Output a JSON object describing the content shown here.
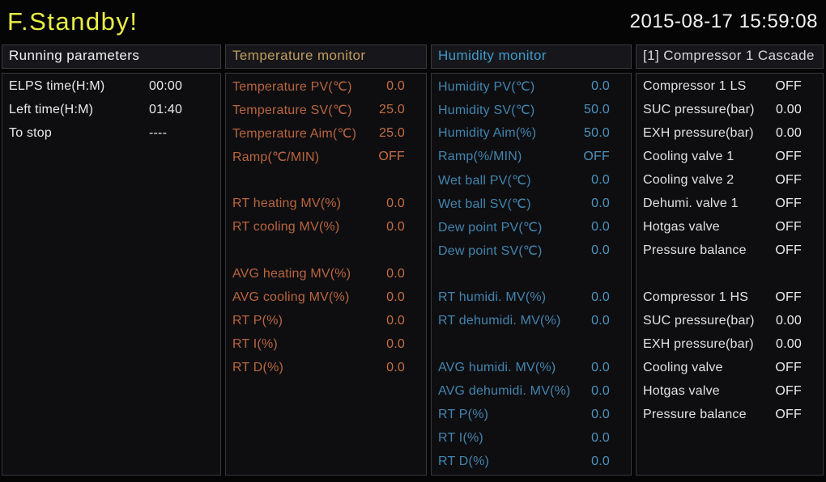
{
  "titlebar": {
    "title": "F.Standby!",
    "datetime": "2015-08-17 15:59:08"
  },
  "colors": {
    "background": "#050505",
    "title": "#e9ee44",
    "datetime": "#f2f2f2",
    "panel_header_bg": "#17171b",
    "panel_body_bg": "#0e0e11",
    "panel_border": "#3a3a3e",
    "temperature_accent": "#c09c5c",
    "temperature_text": "#bd6840",
    "humidity_accent": "#3e9bcb",
    "humidity_text": "#4687b2",
    "neutral_text": "#e8e8e8"
  },
  "panels": [
    {
      "id": "running-parameters",
      "header": "Running parameters",
      "header_color": "#f0f0f0",
      "label_color": "#e9e9e9",
      "value_color": "#e9e9e9",
      "value_align": "left",
      "rows": [
        {
          "label": "ELPS time(H:M)",
          "value": "00:00"
        },
        {
          "label": "Left time(H:M)",
          "value": "01:40"
        },
        {
          "label": "To stop",
          "value": "----"
        }
      ]
    },
    {
      "id": "temperature-monitor",
      "header": "Temperature monitor",
      "header_color": "#c09c5c",
      "label_color": "#b9653e",
      "value_color": "#c66e42",
      "value_align": "right",
      "rows": [
        {
          "label": "Temperature PV(℃)",
          "value": "0.0"
        },
        {
          "label": "Temperature SV(℃)",
          "value": "25.0"
        },
        {
          "label": "Temperature Aim(℃)",
          "value": "25.0"
        },
        {
          "label": "Ramp(℃/MIN)",
          "value": "OFF"
        },
        null,
        {
          "label": "RT heating MV(%)",
          "value": "0.0"
        },
        {
          "label": "RT cooling MV(%)",
          "value": "0.0"
        },
        null,
        {
          "label": "AVG heating MV(%)",
          "value": "0.0"
        },
        {
          "label": "AVG cooling MV(%)",
          "value": "0.0"
        },
        {
          "label": "RT P(%)",
          "value": "0.0"
        },
        {
          "label": "RT I(%)",
          "value": "0.0"
        },
        {
          "label": "RT D(%)",
          "value": "0.0"
        }
      ]
    },
    {
      "id": "humidity-monitor",
      "header": "Humidity monitor",
      "header_color": "#3e9bcb",
      "label_color": "#4384ad",
      "value_color": "#4c93bd",
      "value_align": "right",
      "rows": [
        {
          "label": "Humidity PV(℃)",
          "value": "0.0"
        },
        {
          "label": "Humidity SV(℃)",
          "value": "50.0"
        },
        {
          "label": "Humidity Aim(%)",
          "value": "50.0"
        },
        {
          "label": "Ramp(%/MIN)",
          "value": "OFF"
        },
        {
          "label": "Wet ball PV(℃)",
          "value": "0.0"
        },
        {
          "label": "Wet ball SV(℃)",
          "value": "0.0"
        },
        {
          "label": "Dew point PV(℃)",
          "value": "0.0"
        },
        {
          "label": "Dew point SV(℃)",
          "value": "0.0"
        },
        null,
        {
          "label": "RT humidi. MV(%)",
          "value": "0.0"
        },
        {
          "label": "RT dehumidi. MV(%)",
          "value": "0.0"
        },
        null,
        {
          "label": "AVG humidi. MV(%)",
          "value": "0.0"
        },
        {
          "label": "AVG dehumidi. MV(%)",
          "value": "0.0"
        },
        {
          "label": "RT P(%)",
          "value": "0.0"
        },
        {
          "label": "RT I(%)",
          "value": "0.0"
        },
        {
          "label": "RT D(%)",
          "value": "0.0"
        }
      ]
    },
    {
      "id": "compressor-1-cascade",
      "header": "[1] Compressor 1 Cascade",
      "header_color": "#d8d8d8",
      "label_color": "#e2e2e2",
      "value_color": "#ececec",
      "value_align": "right",
      "rows": [
        {
          "label": "Compressor 1 LS",
          "value": "OFF"
        },
        {
          "label": "SUC pressure(bar)",
          "value": "0.00"
        },
        {
          "label": "EXH pressure(bar)",
          "value": "0.00"
        },
        {
          "label": "Cooling valve 1",
          "value": "OFF"
        },
        {
          "label": "Cooling valve 2",
          "value": "OFF"
        },
        {
          "label": "Dehumi. valve 1",
          "value": "OFF"
        },
        {
          "label": "Hotgas valve",
          "value": "OFF"
        },
        {
          "label": "Pressure balance",
          "value": "OFF"
        },
        null,
        {
          "label": "Compressor 1 HS",
          "value": "OFF"
        },
        {
          "label": "SUC pressure(bar)",
          "value": "0.00"
        },
        {
          "label": "EXH pressure(bar)",
          "value": "0.00"
        },
        {
          "label": "Cooling valve",
          "value": "OFF"
        },
        {
          "label": "Hotgas valve",
          "value": "OFF"
        },
        {
          "label": "Pressure balance",
          "value": "OFF"
        }
      ]
    }
  ]
}
